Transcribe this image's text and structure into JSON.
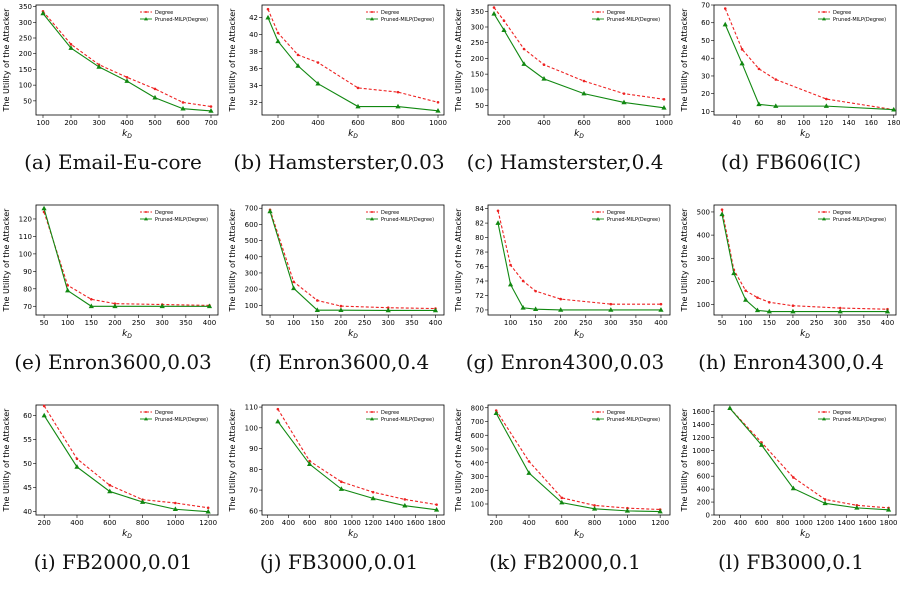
{
  "chart_data": [
    {
      "type": "line",
      "caption": "(a) Email-Eu-core",
      "xlabel": "k",
      "xlabel_sub": "D",
      "ylabel": "The Utility of the Attacker",
      "xlim": [
        75,
        725
      ],
      "ylim": [
        5,
        355
      ],
      "xticks": [
        100,
        200,
        300,
        400,
        500,
        600,
        700
      ],
      "yticks": [
        50,
        100,
        150,
        200,
        250,
        300,
        350
      ],
      "legend": [
        "Degree",
        "Pruned-MILP(Degree)"
      ],
      "series": [
        {
          "name": "Degree",
          "x": [
            100,
            200,
            300,
            400,
            500,
            600,
            700
          ],
          "values": [
            335,
            230,
            165,
            125,
            88,
            45,
            32
          ]
        },
        {
          "name": "Pruned-MILP(Degree)",
          "x": [
            100,
            200,
            300,
            400,
            500,
            600,
            700
          ],
          "values": [
            328,
            218,
            158,
            113,
            60,
            25,
            18
          ]
        }
      ]
    },
    {
      "type": "line",
      "caption": "(b) Hamsterster,0.03",
      "xlabel": "k",
      "xlabel_sub": "D",
      "ylabel": "The Utility of the Attacker",
      "xlim": [
        120,
        1030
      ],
      "ylim": [
        30.5,
        43.5
      ],
      "xticks": [
        200,
        400,
        600,
        800,
        1000
      ],
      "yticks": [
        32,
        34,
        36,
        38,
        40,
        42
      ],
      "legend": [
        "Degree",
        "Pruned-MILP(Degree)"
      ],
      "series": [
        {
          "name": "Degree",
          "x": [
            150,
            200,
            300,
            400,
            600,
            800,
            1000
          ],
          "values": [
            43,
            40.2,
            37.6,
            36.7,
            33.7,
            33.2,
            32
          ]
        },
        {
          "name": "Pruned-MILP(Degree)",
          "x": [
            150,
            200,
            300,
            400,
            600,
            800,
            1000
          ],
          "values": [
            42,
            39.2,
            36.3,
            34.2,
            31.5,
            31.5,
            31
          ]
        }
      ]
    },
    {
      "type": "line",
      "caption": "(c) Hamsterster,0.4",
      "xlabel": "k",
      "xlabel_sub": "D",
      "ylabel": "The Utility of the Attacker",
      "xlim": [
        120,
        1030
      ],
      "ylim": [
        20,
        370
      ],
      "xticks": [
        200,
        400,
        600,
        800,
        1000
      ],
      "yticks": [
        50,
        100,
        150,
        200,
        250,
        300,
        350
      ],
      "legend": [
        "Degree",
        "Pruned-MILP(Degree)"
      ],
      "series": [
        {
          "name": "Degree",
          "x": [
            150,
            200,
            300,
            400,
            600,
            800,
            1000
          ],
          "values": [
            362,
            320,
            230,
            180,
            128,
            88,
            70
          ]
        },
        {
          "name": "Pruned-MILP(Degree)",
          "x": [
            150,
            200,
            300,
            400,
            600,
            800,
            1000
          ],
          "values": [
            342,
            290,
            182,
            135,
            88,
            60,
            43
          ]
        }
      ]
    },
    {
      "type": "line",
      "caption": "(d) FB606(IC)",
      "xlabel": "k",
      "xlabel_sub": "D",
      "ylabel": "The Utility of the Attacker",
      "xlim": [
        20,
        182
      ],
      "ylim": [
        8,
        70
      ],
      "xticks": [
        40,
        60,
        80,
        100,
        120,
        140,
        160,
        180
      ],
      "yticks": [
        10,
        20,
        30,
        40,
        50,
        60,
        70
      ],
      "legend": [
        "Degree",
        "Pruned-MILP(Degree)"
      ],
      "series": [
        {
          "name": "Degree",
          "x": [
            30,
            45,
            60,
            75,
            120,
            180
          ],
          "values": [
            68,
            45,
            34,
            28,
            17,
            11
          ]
        },
        {
          "name": "Pruned-MILP(Degree)",
          "x": [
            30,
            45,
            60,
            75,
            120,
            180
          ],
          "values": [
            59,
            37,
            14,
            13,
            13,
            11
          ]
        }
      ]
    },
    {
      "type": "line",
      "caption": "(e) Enron3600,0.03",
      "xlabel": "k",
      "xlabel_sub": "D",
      "ylabel": "The Utility of the Attacker",
      "xlim": [
        33,
        418
      ],
      "ylim": [
        65,
        128
      ],
      "xticks": [
        50,
        100,
        150,
        200,
        250,
        300,
        350,
        400
      ],
      "yticks": [
        70,
        80,
        90,
        100,
        110,
        120
      ],
      "legend": [
        "Degree",
        "Pruned-MILP(Degree)"
      ],
      "series": [
        {
          "name": "Degree",
          "x": [
            50,
            100,
            150,
            200,
            300,
            400
          ],
          "values": [
            124,
            82,
            74,
            71.5,
            71,
            70.5
          ]
        },
        {
          "name": "Pruned-MILP(Degree)",
          "x": [
            50,
            100,
            150,
            200,
            300,
            400
          ],
          "values": [
            126,
            79,
            70,
            70,
            70,
            70
          ]
        }
      ]
    },
    {
      "type": "line",
      "caption": "(f) Enron3600,0.4",
      "xlabel": "k",
      "xlabel_sub": "D",
      "ylabel": "The Utility of the Attacker",
      "xlim": [
        33,
        418
      ],
      "ylim": [
        40,
        720
      ],
      "xticks": [
        50,
        100,
        150,
        200,
        250,
        300,
        350,
        400
      ],
      "yticks": [
        100,
        200,
        300,
        400,
        500,
        600,
        700
      ],
      "legend": [
        "Degree",
        "Pruned-MILP(Degree)"
      ],
      "series": [
        {
          "name": "Degree",
          "x": [
            50,
            100,
            150,
            200,
            300,
            400
          ],
          "values": [
            690,
            245,
            130,
            95,
            85,
            80
          ]
        },
        {
          "name": "Pruned-MILP(Degree)",
          "x": [
            50,
            100,
            150,
            200,
            300,
            400
          ],
          "values": [
            680,
            205,
            70,
            70,
            68,
            68
          ]
        }
      ]
    },
    {
      "type": "line",
      "caption": "(g) Enron4300,0.03",
      "xlabel": "k",
      "xlabel_sub": "D",
      "ylabel": "The Utility of the Attacker",
      "xlim": [
        55,
        418
      ],
      "ylim": [
        69.3,
        84.5
      ],
      "xticks": [
        100,
        150,
        200,
        250,
        300,
        350,
        400
      ],
      "yticks": [
        70,
        72,
        74,
        76,
        78,
        80,
        82,
        84
      ],
      "legend": [
        "Degree",
        "Pruned-MILP(Degree)"
      ],
      "series": [
        {
          "name": "Degree",
          "x": [
            75,
            100,
            125,
            150,
            200,
            300,
            400
          ],
          "values": [
            83.7,
            76.2,
            74,
            72.6,
            71.5,
            70.8,
            70.8
          ]
        },
        {
          "name": "Pruned-MILP(Degree)",
          "x": [
            75,
            100,
            125,
            150,
            200,
            300,
            400
          ],
          "values": [
            82,
            73.5,
            70.3,
            70.1,
            70,
            70,
            70
          ]
        }
      ]
    },
    {
      "type": "line",
      "caption": "(h) Enron4300,0.4",
      "xlabel": "k",
      "xlabel_sub": "D",
      "ylabel": "The Utility of the Attacker",
      "xlim": [
        33,
        418
      ],
      "ylim": [
        55,
        530
      ],
      "xticks": [
        50,
        100,
        150,
        200,
        250,
        300,
        350,
        400
      ],
      "yticks": [
        100,
        200,
        300,
        400,
        500
      ],
      "legend": [
        "Degree",
        "Pruned-MILP(Degree)"
      ],
      "series": [
        {
          "name": "Degree",
          "x": [
            50,
            75,
            100,
            125,
            150,
            200,
            300,
            400
          ],
          "values": [
            510,
            250,
            160,
            130,
            110,
            95,
            85,
            80
          ]
        },
        {
          "name": "Pruned-MILP(Degree)",
          "x": [
            50,
            75,
            100,
            125,
            150,
            200,
            300,
            400
          ],
          "values": [
            490,
            235,
            120,
            75,
            70,
            70,
            70,
            70
          ]
        }
      ]
    },
    {
      "type": "line",
      "caption": "(i) FB2000,0.01",
      "xlabel": "k",
      "xlabel_sub": "D",
      "ylabel": "The Utility of the Attacker",
      "xlim": [
        150,
        1260
      ],
      "ylim": [
        39.3,
        62.2
      ],
      "xticks": [
        200,
        400,
        600,
        800,
        1000,
        1200
      ],
      "yticks": [
        40,
        45,
        50,
        55,
        60
      ],
      "legend": [
        "Degree",
        "Pruned-MILP(Degree)"
      ],
      "series": [
        {
          "name": "Degree",
          "x": [
            200,
            400,
            600,
            800,
            1000,
            1200
          ],
          "values": [
            62,
            51,
            45.5,
            42.5,
            41.8,
            40.8
          ]
        },
        {
          "name": "Pruned-MILP(Degree)",
          "x": [
            200,
            400,
            600,
            800,
            1000,
            1200
          ],
          "values": [
            60,
            49.3,
            44.2,
            42,
            40.5,
            40
          ]
        }
      ]
    },
    {
      "type": "line",
      "caption": "(j) FB3000,0.01",
      "xlabel": "k",
      "xlabel_sub": "D",
      "ylabel": "The Utility of the Attacker",
      "xlim": [
        150,
        1870
      ],
      "ylim": [
        58,
        111
      ],
      "xticks": [
        200,
        400,
        600,
        800,
        1000,
        1200,
        1400,
        1600,
        1800
      ],
      "yticks": [
        60,
        70,
        80,
        90,
        100,
        110
      ],
      "legend": [
        "Degree",
        "Pruned-MILP(Degree)"
      ],
      "series": [
        {
          "name": "Degree",
          "x": [
            300,
            600,
            900,
            1200,
            1500,
            1800
          ],
          "values": [
            109,
            84,
            74,
            69,
            65.5,
            63
          ]
        },
        {
          "name": "Pruned-MILP(Degree)",
          "x": [
            300,
            600,
            900,
            1200,
            1500,
            1800
          ],
          "values": [
            103,
            82.5,
            70.5,
            66,
            62.5,
            60.5
          ]
        }
      ]
    },
    {
      "type": "line",
      "caption": "(k) FB2000,0.1",
      "xlabel": "k",
      "xlabel_sub": "D",
      "ylabel": "The Utility of the Attacker",
      "xlim": [
        150,
        1260
      ],
      "ylim": [
        20,
        820
      ],
      "xticks": [
        200,
        400,
        600,
        800,
        1000,
        1200
      ],
      "yticks": [
        100,
        200,
        300,
        400,
        500,
        600,
        700,
        800
      ],
      "legend": [
        "Degree",
        "Pruned-MILP(Degree)"
      ],
      "series": [
        {
          "name": "Degree",
          "x": [
            200,
            400,
            600,
            800,
            1000,
            1200
          ],
          "values": [
            780,
            410,
            145,
            90,
            70,
            60
          ]
        },
        {
          "name": "Pruned-MILP(Degree)",
          "x": [
            200,
            400,
            600,
            800,
            1000,
            1200
          ],
          "values": [
            760,
            325,
            110,
            65,
            50,
            45
          ]
        }
      ]
    },
    {
      "type": "line",
      "caption": "(l) FB3000,0.1",
      "xlabel": "k",
      "xlabel_sub": "D",
      "ylabel": "The Utility of the Attacker",
      "xlim": [
        150,
        1870
      ],
      "ylim": [
        0,
        1700
      ],
      "xticks": [
        200,
        400,
        600,
        800,
        1000,
        1200,
        1400,
        1600,
        1800
      ],
      "yticks": [
        0,
        200,
        400,
        600,
        800,
        1000,
        1200,
        1400,
        1600
      ],
      "legend": [
        "Degree",
        "Pruned-MILP(Degree)"
      ],
      "series": [
        {
          "name": "Degree",
          "x": [
            300,
            600,
            900,
            1200,
            1500,
            1800
          ],
          "values": [
            1650,
            1120,
            580,
            240,
            150,
            110
          ]
        },
        {
          "name": "Pruned-MILP(Degree)",
          "x": [
            300,
            600,
            900,
            1200,
            1500,
            1800
          ],
          "values": [
            1650,
            1080,
            410,
            180,
            110,
            80
          ]
        }
      ]
    }
  ],
  "colors": {
    "degree": "#ee2222",
    "pruned": "#118811",
    "axis": "#000000"
  }
}
